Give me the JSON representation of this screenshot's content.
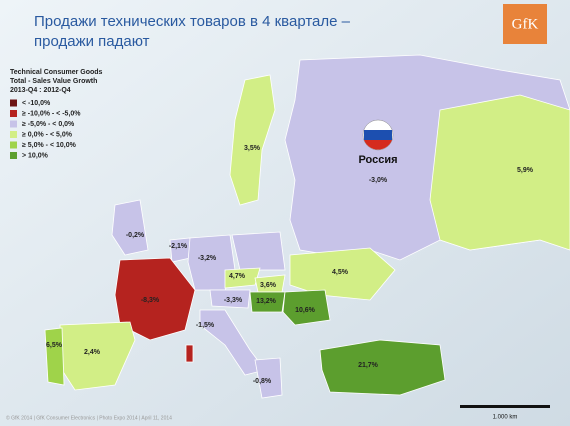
{
  "header": {
    "title_line1": "Продажи технических товаров в 4 квартале –",
    "title_line2": "продажи падают",
    "logo": "GfK"
  },
  "legend": {
    "title_line1": "Technical Consumer Goods",
    "title_line2": "Total - Sales Value Growth",
    "title_line3": "2013-Q4 : 2012-Q4",
    "rows": [
      {
        "color": "#6e1414",
        "text": "<   -10,0%"
      },
      {
        "color": "#b5231f",
        "text": "≥  -10,0%  -  <   -5,0%"
      },
      {
        "color": "#c7c3e8",
        "text": "≥   -5,0%  -  <    0,0%"
      },
      {
        "color": "#d2ee86",
        "text": "≥    0,0%  -  <    5,0%"
      },
      {
        "color": "#9fd34a",
        "text": "≥    5,0%  -  <   10,0%"
      },
      {
        "color": "#5c9e2e",
        "text": ">   10,0%"
      }
    ]
  },
  "map": {
    "russia_name": "Россия",
    "labels": [
      "3,5%",
      "-3,0%",
      "5,9%",
      "-0,2%",
      "-2,1%",
      "-3,2%",
      "4,7%",
      "3,6%",
      "4,5%",
      "-8,3%",
      "-3,3%",
      "13,2%",
      "10,6%",
      "-1,5%",
      "2,4%",
      "6,5%",
      "-0,8%",
      "21,7%"
    ],
    "scale": "1.000 km"
  },
  "footer": {
    "text": "© GfK 2014 | GfK Consumer Electronics | Photo Expo 2014 | April 11, 2014"
  }
}
